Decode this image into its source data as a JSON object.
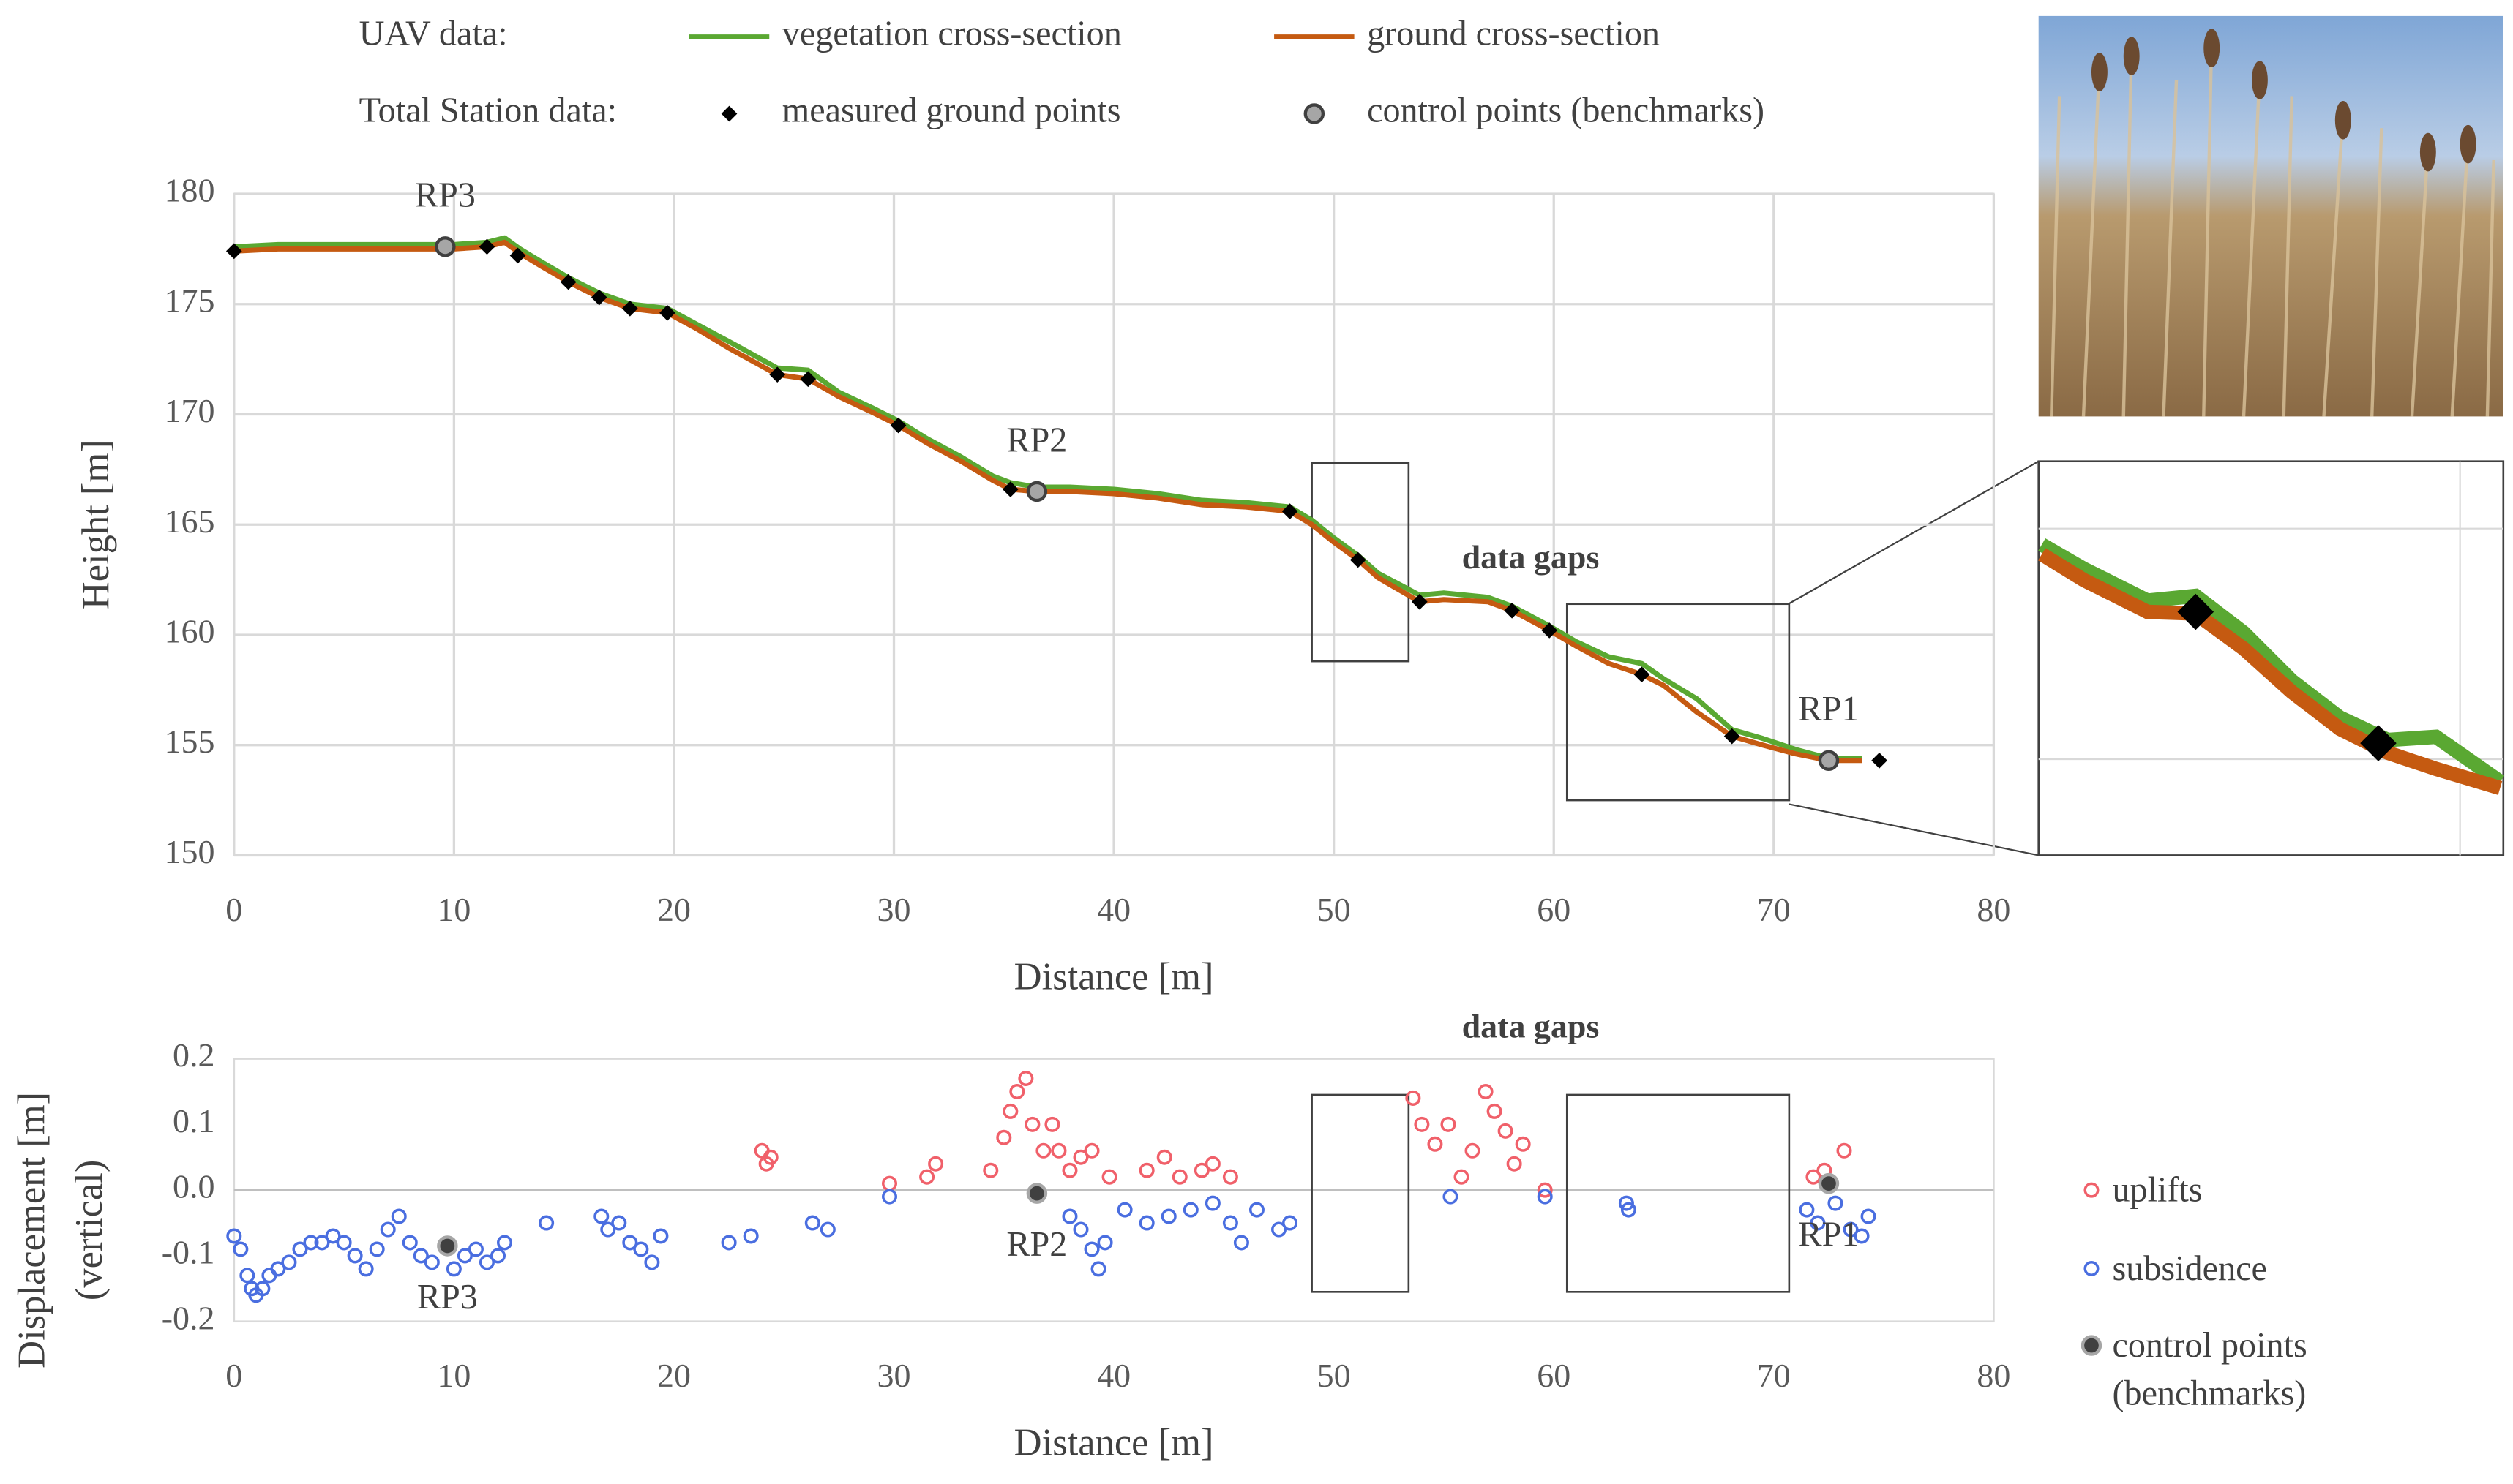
{
  "chart_data": [
    {
      "type": "line",
      "x_label": "Distance [m]",
      "y_label": "Height [m]",
      "xlim": [
        0,
        80
      ],
      "xticks": [
        0,
        10,
        20,
        30,
        40,
        50,
        60,
        70,
        80
      ],
      "ylim": [
        150,
        180
      ],
      "yticks": [
        150,
        155,
        160,
        165,
        170,
        175,
        180
      ],
      "grid": true,
      "legend_groups": [
        "UAV data:",
        "Total Station data:"
      ],
      "annotations": [
        "data gaps"
      ],
      "regions": [
        {
          "x": [
            49,
            53.4
          ],
          "y": [
            158.8,
            167.8
          ]
        },
        {
          "x": [
            60.6,
            70.7
          ],
          "y": [
            152.5,
            161.4
          ]
        }
      ],
      "series": [
        {
          "name": "vegetation cross-section",
          "color": "#5aa832",
          "x": [
            0,
            2,
            5,
            8,
            10,
            11.5,
            12.3,
            13,
            14,
            15.2,
            16.6,
            18,
            19.7,
            21,
            22.5,
            24.7,
            26.1,
            27.5,
            29,
            30.2,
            31.5,
            33,
            34.5,
            35.3,
            36.5,
            38,
            40,
            42,
            44,
            46,
            48,
            49,
            50,
            51.1,
            52,
            53.9,
            55,
            57,
            58.1,
            59.8,
            61,
            62.5,
            64,
            65,
            66.5,
            68.1,
            69.5,
            71,
            72.5,
            74
          ],
          "values": [
            177.6,
            177.7,
            177.7,
            177.7,
            177.7,
            177.8,
            178.0,
            177.5,
            176.9,
            176.2,
            175.5,
            175.0,
            174.8,
            174.1,
            173.3,
            172.1,
            172.0,
            171.0,
            170.3,
            169.7,
            168.9,
            168.1,
            167.2,
            166.9,
            166.7,
            166.7,
            166.6,
            166.4,
            166.1,
            166.0,
            165.8,
            165.2,
            164.4,
            163.6,
            162.8,
            161.8,
            161.9,
            161.7,
            161.3,
            160.4,
            159.7,
            159.0,
            158.7,
            158.0,
            157.1,
            155.7,
            155.3,
            154.8,
            154.4,
            154.4
          ]
        },
        {
          "name": "ground cross-section",
          "color": "#c55a11",
          "x": [
            0,
            2,
            5,
            8,
            10,
            11.5,
            12.3,
            13,
            14,
            15.2,
            16.6,
            18,
            19.7,
            21,
            22.5,
            24.7,
            26.1,
            27.5,
            29,
            30.2,
            31.5,
            33,
            34.5,
            35.3,
            36.5,
            38,
            40,
            42,
            44,
            46,
            48,
            49,
            50,
            51.1,
            52,
            53.9,
            55,
            57,
            58.1,
            59.8,
            61,
            62.5,
            64,
            65,
            66.5,
            68.1,
            69.5,
            71,
            72.5,
            74
          ],
          "values": [
            177.4,
            177.5,
            177.5,
            177.5,
            177.5,
            177.6,
            177.8,
            177.3,
            176.7,
            176.0,
            175.3,
            174.8,
            174.6,
            173.9,
            173.0,
            171.8,
            171.6,
            170.8,
            170.1,
            169.5,
            168.7,
            167.9,
            167.0,
            166.6,
            166.5,
            166.5,
            166.4,
            166.2,
            165.9,
            165.8,
            165.6,
            165.0,
            164.2,
            163.4,
            162.6,
            161.5,
            161.6,
            161.5,
            161.1,
            160.2,
            159.5,
            158.7,
            158.2,
            157.7,
            156.5,
            155.4,
            155.0,
            154.6,
            154.3,
            154.3
          ]
        },
        {
          "name": "measured ground points",
          "color": "#000000",
          "marker": "diamond",
          "x": [
            0,
            11.5,
            12.9,
            15.2,
            16.6,
            18,
            19.7,
            24.7,
            26.1,
            30.2,
            35.3,
            48,
            51.1,
            53.9,
            58.1,
            59.8,
            64,
            68.1,
            74.8
          ],
          "values": [
            177.4,
            177.6,
            177.2,
            176,
            175.3,
            174.8,
            174.6,
            171.8,
            171.6,
            169.5,
            166.6,
            165.6,
            163.4,
            161.5,
            161.1,
            160.2,
            158.2,
            155.4,
            154.3
          ]
        },
        {
          "name": "control points (benchmarks)",
          "color": "#a6a6a6",
          "marker": "circle",
          "x": [
            9.6,
            36.5,
            72.5
          ],
          "values": [
            177.6,
            166.5,
            154.3
          ],
          "labels": [
            "RP3",
            "RP2",
            "RP1"
          ]
        }
      ]
    },
    {
      "type": "scatter",
      "x_label": "Distance [m]",
      "y_label": [
        "Displacement [m]",
        "(vertical)"
      ],
      "xlim": [
        0,
        80
      ],
      "xticks": [
        0,
        10,
        20,
        30,
        40,
        50,
        60,
        70,
        80
      ],
      "ylim": [
        -0.2,
        0.2
      ],
      "yticks": [
        -0.2,
        -0.1,
        {
          "value": 0,
          "label": "0.0"
        },
        0.1,
        0.2
      ],
      "grid": false,
      "zero_line": true,
      "annotations": [
        "data gaps"
      ],
      "regions": [
        {
          "x": [
            49,
            53.4
          ],
          "y": [
            -0.155,
            0.145
          ]
        },
        {
          "x": [
            60.6,
            70.7
          ],
          "y": [
            -0.155,
            0.145
          ]
        }
      ],
      "series": [
        {
          "name": "uplifts",
          "color": "#f0606a",
          "marker": "ring",
          "x": [
            24.0,
            24.2,
            24.4,
            29.8,
            31.5,
            31.9,
            34.4,
            35.0,
            35.3,
            35.6,
            36.0,
            36.3,
            36.8,
            37.2,
            37.5,
            38.0,
            38.5,
            39.0,
            39.8,
            41.5,
            42.3,
            43.0,
            44.0,
            44.5,
            45.3,
            53.6,
            54.0,
            54.6,
            55.2,
            55.8,
            56.3,
            56.9,
            57.3,
            57.8,
            58.2,
            58.6,
            59.6,
            71.8,
            72.3,
            73.2
          ],
          "values": [
            0.06,
            0.04,
            0.05,
            0.01,
            0.02,
            0.04,
            0.03,
            0.08,
            0.12,
            0.15,
            0.17,
            0.1,
            0.06,
            0.1,
            0.06,
            0.03,
            0.05,
            0.06,
            0.02,
            0.03,
            0.05,
            0.02,
            0.03,
            0.04,
            0.02,
            0.14,
            0.1,
            0.07,
            0.1,
            0.02,
            0.06,
            0.15,
            0.12,
            0.09,
            0.04,
            0.07,
            0.0,
            0.02,
            0.03,
            0.06
          ]
        },
        {
          "name": "subsidence",
          "color": "#4a6ee0",
          "marker": "ring",
          "x": [
            0.0,
            0.3,
            0.6,
            0.8,
            1.0,
            1.3,
            1.6,
            2.0,
            2.5,
            3.0,
            3.5,
            4.0,
            4.5,
            5.0,
            5.5,
            6.0,
            6.5,
            7.0,
            7.5,
            8.0,
            8.5,
            9.0,
            10.0,
            10.5,
            11.0,
            11.5,
            12.0,
            12.3,
            14.2,
            16.7,
            17.0,
            17.5,
            18.0,
            18.5,
            19.0,
            19.4,
            22.5,
            23.5,
            26.3,
            27.0,
            29.8,
            38.0,
            38.5,
            39.0,
            39.3,
            39.6,
            40.5,
            41.5,
            42.5,
            43.5,
            44.5,
            45.3,
            45.8,
            46.5,
            47.5,
            48.0,
            55.3,
            59.6,
            63.3,
            63.4,
            71.5,
            72.0,
            72.8,
            73.5,
            74.0,
            74.3
          ],
          "values": [
            -0.07,
            -0.09,
            -0.13,
            -0.15,
            -0.16,
            -0.15,
            -0.13,
            -0.12,
            -0.11,
            -0.09,
            -0.08,
            -0.08,
            -0.07,
            -0.08,
            -0.1,
            -0.12,
            -0.09,
            -0.06,
            -0.04,
            -0.08,
            -0.1,
            -0.11,
            -0.12,
            -0.1,
            -0.09,
            -0.11,
            -0.1,
            -0.08,
            -0.05,
            -0.04,
            -0.06,
            -0.05,
            -0.08,
            -0.09,
            -0.11,
            -0.07,
            -0.08,
            -0.07,
            -0.05,
            -0.06,
            -0.01,
            -0.04,
            -0.06,
            -0.09,
            -0.12,
            -0.08,
            -0.03,
            -0.05,
            -0.04,
            -0.03,
            -0.02,
            -0.05,
            -0.08,
            -0.03,
            -0.06,
            -0.05,
            -0.01,
            -0.01,
            -0.02,
            -0.03,
            -0.03,
            -0.05,
            -0.02,
            -0.06,
            -0.07,
            -0.04
          ]
        },
        {
          "name": "control points (benchmarks)",
          "color": "#404040",
          "marker": "circle",
          "x": [
            9.7,
            36.5,
            72.5
          ],
          "values": [
            -0.085,
            -0.005,
            0.01
          ],
          "labels": [
            "RP3",
            "RP2",
            "RP1"
          ]
        }
      ]
    }
  ]
}
